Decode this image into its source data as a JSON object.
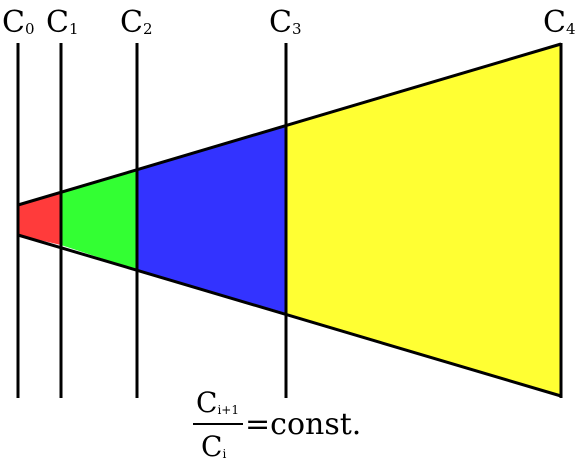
{
  "diagram": {
    "capacitors": [
      {
        "base": "C",
        "subscript": "0"
      },
      {
        "base": "C",
        "subscript": "1"
      },
      {
        "base": "C",
        "subscript": "2"
      },
      {
        "base": "C",
        "subscript": "3"
      },
      {
        "base": "C",
        "subscript": "4"
      }
    ],
    "segments": [
      {
        "color": "#FF3B3B"
      },
      {
        "color": "#33FF33"
      },
      {
        "color": "#3333FF"
      },
      {
        "color": "#FFFF33"
      }
    ],
    "formula": {
      "numerator_base": "C",
      "numerator_sub": "i+1",
      "denominator_base": "C",
      "denominator_sub": "i",
      "rhs": "=const."
    }
  }
}
